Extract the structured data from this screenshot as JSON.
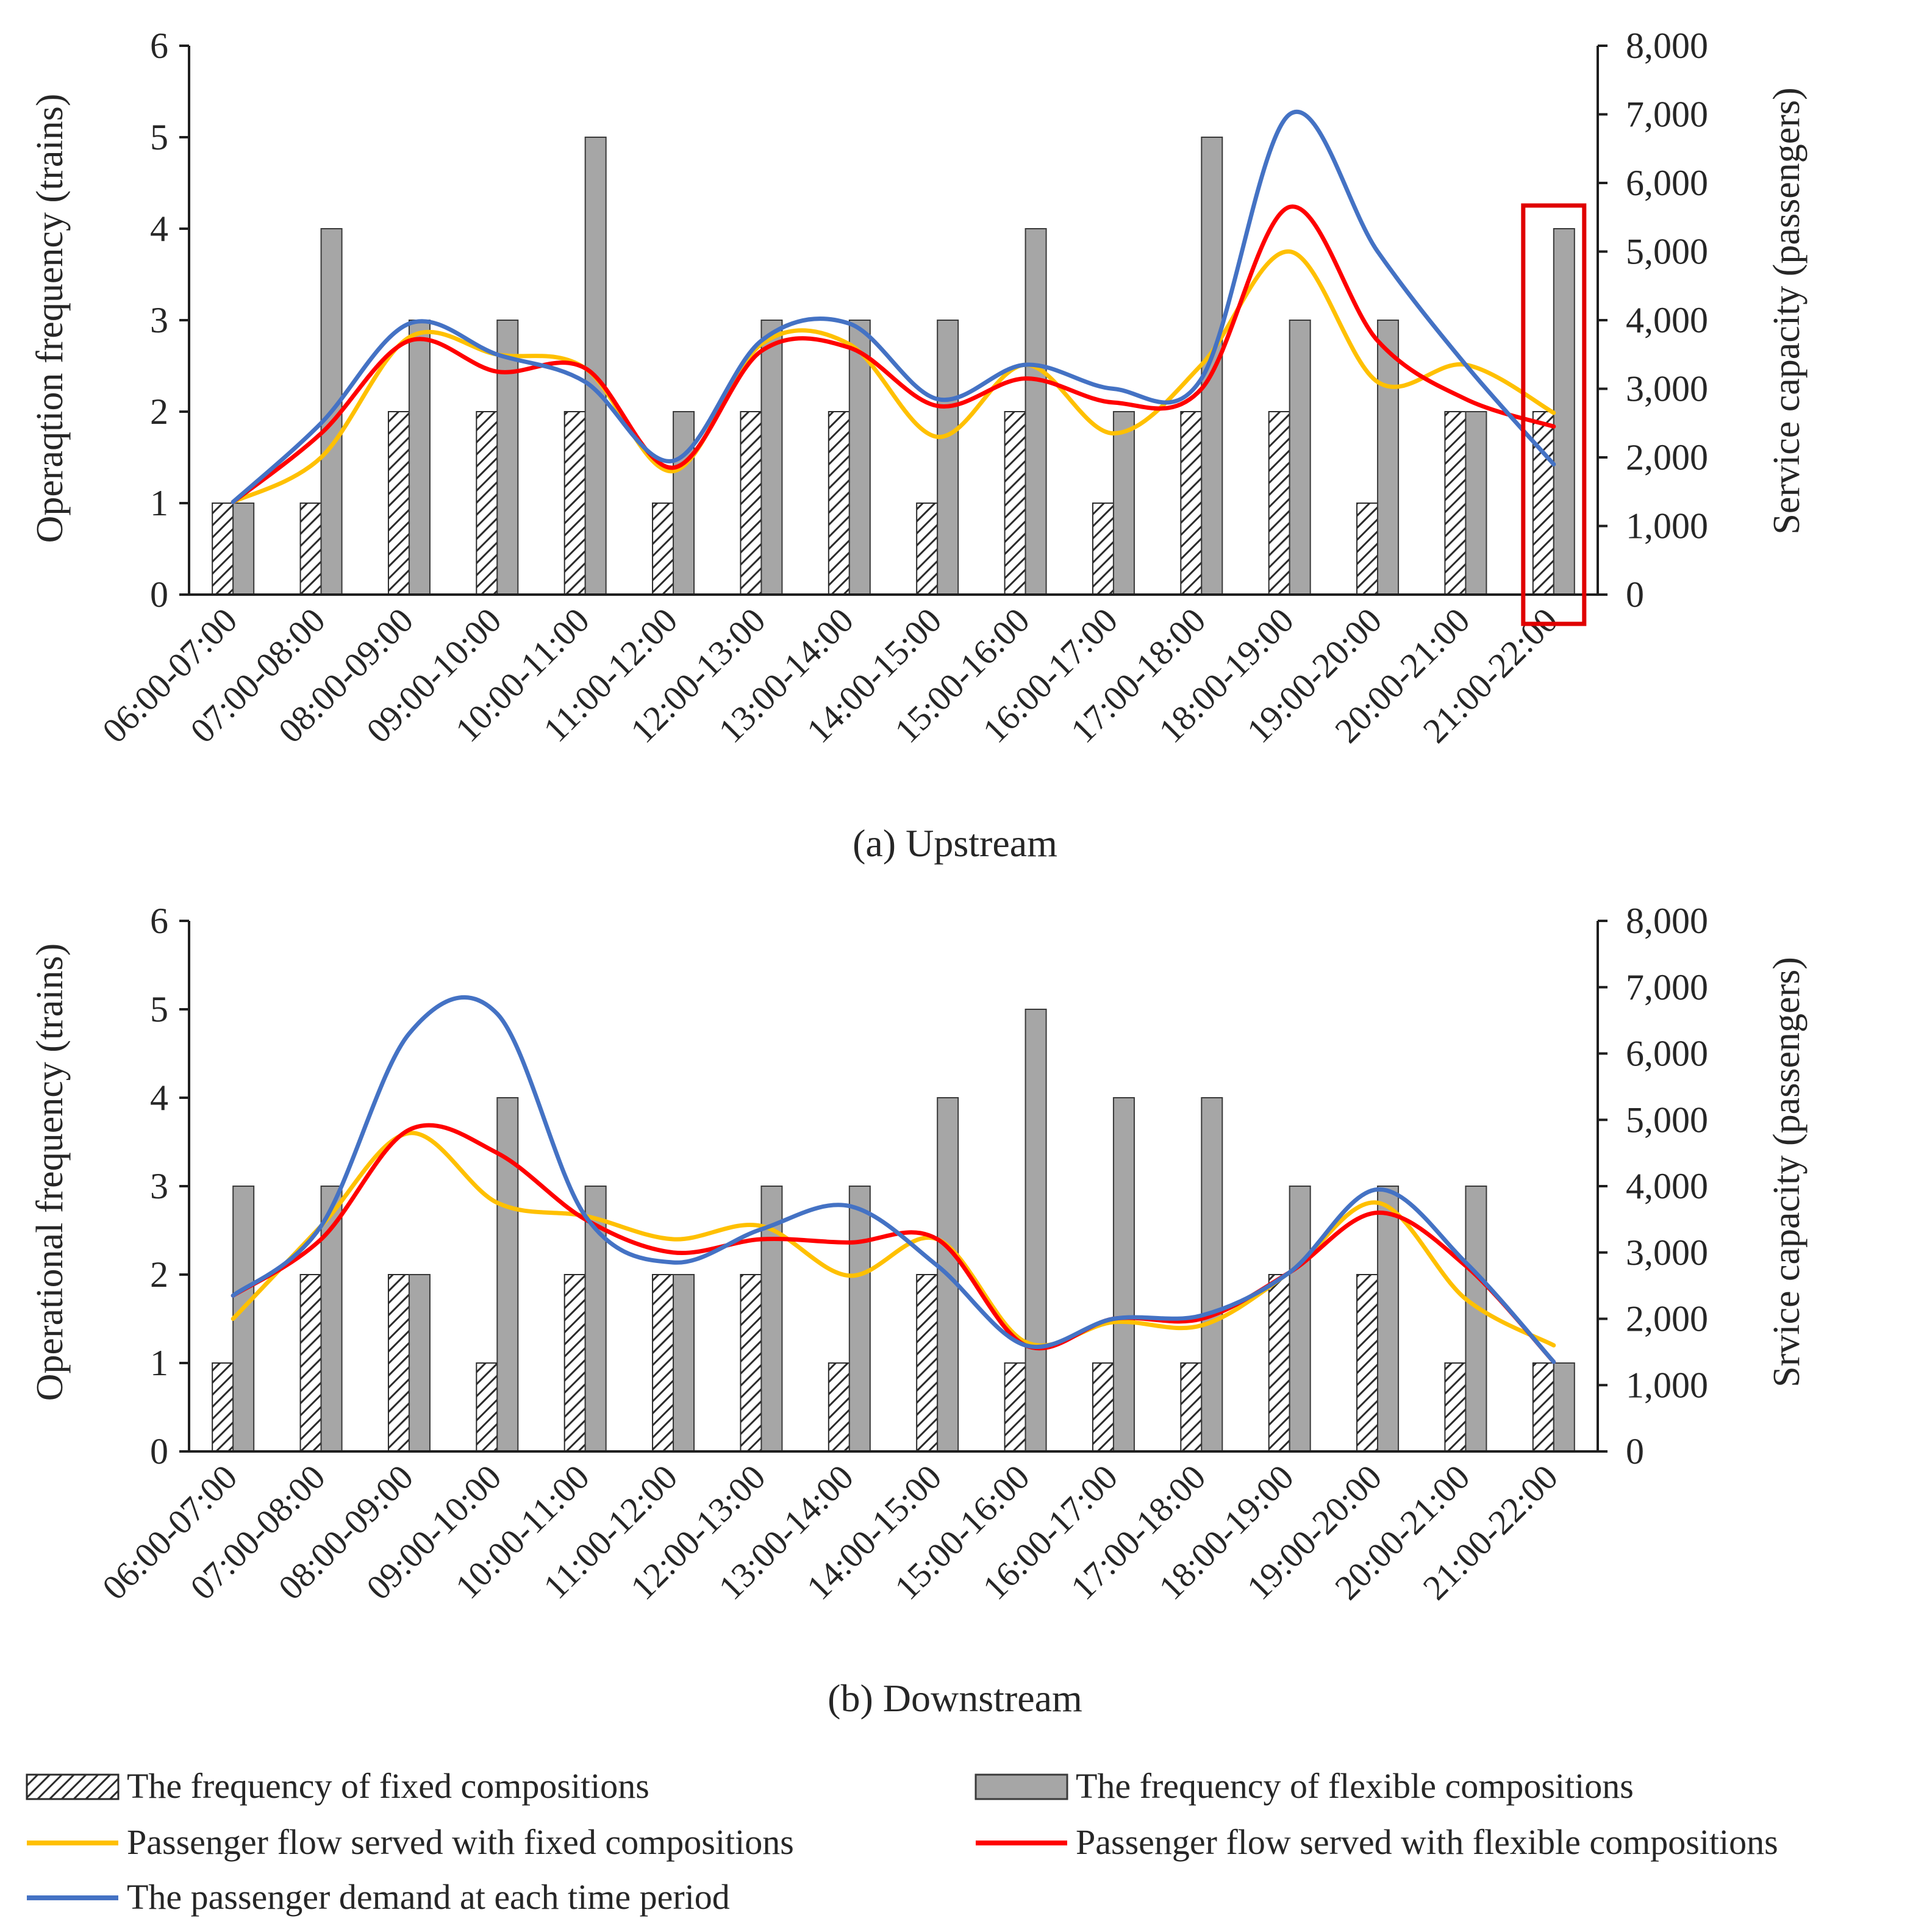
{
  "colors": {
    "fixed_bar_fill": "#ffffff",
    "fixed_bar_hatch": "#2b2b2b",
    "flexible_bar": "#a6a6a6",
    "flexible_bar_edge": "#3a3a3a",
    "fixed_flow": "#ffc000",
    "flexible_flow": "#ff0000",
    "demand": "#4472c4",
    "axis": "#1f1f1f",
    "highlight_box": "#e00000"
  },
  "legend": {
    "fixed_bar": "The frequency of fixed compositions",
    "flexible_bar": "The frequency of flexible compositions",
    "fixed_flow": "Passenger flow served with fixed compositions",
    "flexible_flow": "Passenger flow served with flexible compositions",
    "demand": "The passenger demand at each time period"
  },
  "chart_data": [
    {
      "type": "bar",
      "caption": "(a) Upstream",
      "ylabel": "Operaqtion frequency (trains)",
      "y2label": "Service capacity (passengers)",
      "ylim": [
        0,
        6
      ],
      "y2lim": [
        0,
        8000
      ],
      "yticks": [
        "0",
        "1",
        "2",
        "3",
        "4",
        "5",
        "6"
      ],
      "y2ticks": [
        "0",
        "1,000",
        "2,000",
        "3,000",
        "4,000",
        "5,000",
        "6,000",
        "7,000",
        "8,000"
      ],
      "categories": [
        "06:00-07:00",
        "07:00-08:00",
        "08:00-09:00",
        "09:00-10:00",
        "10:00-11:00",
        "11:00-12:00",
        "12:00-13:00",
        "13:00-14:00",
        "14:00-15:00",
        "15:00-16:00",
        "16:00-17:00",
        "17:00-18:00",
        "18:00-19:00",
        "19:00-20:00",
        "20:00-21:00",
        "21:00-22:00"
      ],
      "bar_series": [
        {
          "name": "The frequency of fixed compositions",
          "values": [
            1,
            1,
            2,
            2,
            2,
            1,
            2,
            2,
            1,
            2,
            1,
            2,
            2,
            1,
            2,
            2
          ]
        },
        {
          "name": "The frequency of flexible compositions",
          "values": [
            1,
            4,
            3,
            3,
            5,
            2,
            3,
            3,
            3,
            4,
            2,
            5,
            3,
            3,
            2,
            4
          ]
        }
      ],
      "line_series": [
        {
          "name": "Passenger flow served with fixed compositions",
          "values": [
            1350,
            2000,
            3750,
            3500,
            3300,
            1800,
            3650,
            3650,
            2300,
            3350,
            2350,
            3350,
            5000,
            3100,
            3350,
            2650
          ]
        },
        {
          "name": "Passenger flow served with flexible compositions",
          "values": [
            1350,
            2350,
            3700,
            3250,
            3300,
            1850,
            3550,
            3600,
            2750,
            3150,
            2800,
            3000,
            5650,
            3700,
            2850,
            2450
          ]
        },
        {
          "name": "The passenger demand at each time period",
          "values": [
            1350,
            2500,
            3950,
            3500,
            3100,
            1950,
            3700,
            3950,
            2850,
            3350,
            3000,
            3150,
            7000,
            5000,
            3350,
            1900
          ]
        }
      ],
      "highlight": {
        "category": "21:00-22:00"
      }
    },
    {
      "type": "bar",
      "caption": "(b) Downstream",
      "ylabel": "Operational frequency (trains)",
      "y2label": "Srvice capacity (passengers)",
      "ylim": [
        0,
        6
      ],
      "y2lim": [
        0,
        8000
      ],
      "yticks": [
        "0",
        "1",
        "2",
        "3",
        "4",
        "5",
        "6"
      ],
      "y2ticks": [
        "0",
        "1,000",
        "2,000",
        "3,000",
        "4,000",
        "5,000",
        "6,000",
        "7,000",
        "8,000"
      ],
      "categories": [
        "06:00-07:00",
        "07:00-08:00",
        "08:00-09:00",
        "09:00-10:00",
        "10:00-11:00",
        "11:00-12:00",
        "12:00-13:00",
        "13:00-14:00",
        "14:00-15:00",
        "15:00-16:00",
        "16:00-17:00",
        "17:00-18:00",
        "18:00-19:00",
        "19:00-20:00",
        "20:00-21:00",
        "21:00-22:00"
      ],
      "bar_series": [
        {
          "name": "The frequency of fixed compositions",
          "values": [
            1,
            2,
            2,
            1,
            2,
            2,
            2,
            1,
            2,
            1,
            1,
            1,
            2,
            2,
            1,
            1
          ]
        },
        {
          "name": "The frequency of flexible compositions",
          "values": [
            3,
            3,
            2,
            4,
            3,
            2,
            3,
            3,
            4,
            5,
            4,
            4,
            3,
            3,
            3,
            1
          ]
        }
      ],
      "line_series": [
        {
          "name": "Passenger flow served with fixed compositions",
          "values": [
            2000,
            3400,
            4800,
            3750,
            3550,
            3200,
            3400,
            2650,
            3200,
            1650,
            1950,
            1900,
            2700,
            3750,
            2300,
            1600
          ]
        },
        {
          "name": "Passenger flow served with flexible compositions",
          "values": [
            2350,
            3200,
            4850,
            4500,
            3500,
            3000,
            3200,
            3150,
            3200,
            1600,
            2000,
            2000,
            2700,
            3600,
            2800,
            1350
          ]
        },
        {
          "name": "The passenger demand at each time period",
          "values": [
            2350,
            3400,
            6300,
            6600,
            3550,
            2850,
            3350,
            3700,
            2800,
            1600,
            2000,
            2050,
            2700,
            3950,
            2850,
            1350
          ]
        }
      ]
    }
  ]
}
